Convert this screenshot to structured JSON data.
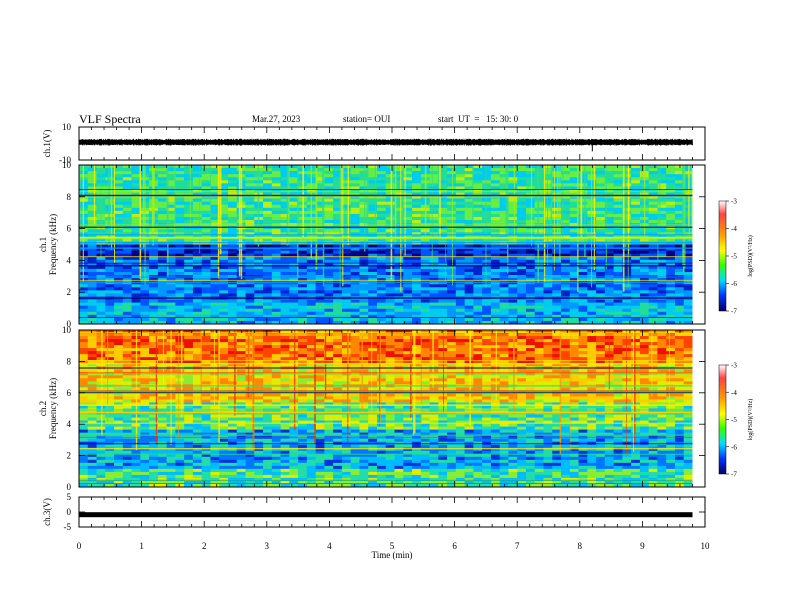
{
  "header": {
    "title": "VLF Spectra",
    "date": "Mar.27, 2023",
    "station": "station= OUI",
    "start": "start  UT  =   15: 30: 0"
  },
  "chart_data": [
    {
      "type": "line",
      "panel": "ch1-waveform",
      "ylabel": "ch.1(V)",
      "ylim": [
        -10,
        10
      ],
      "xlim": [
        0,
        10
      ],
      "yticks": [
        "10",
        "-10"
      ],
      "trace_level": 0.7,
      "trace_end_min": 9.8
    },
    {
      "type": "heatmap",
      "panel": "ch1-spectrogram",
      "ylabel": [
        "ch.1",
        "Frequency  (kHz)"
      ],
      "ylim": [
        0,
        10
      ],
      "yticks": [
        "0",
        "2",
        "4",
        "6",
        "8",
        "10"
      ],
      "xlim": [
        0,
        10
      ],
      "data_end_min": 9.8,
      "colorbar": {
        "label": "log(PSD)(V²/Hz)",
        "ticks": [
          "-3",
          "-4",
          "-5",
          "-6",
          "-7"
        ],
        "range": [
          -7,
          -3
        ]
      }
    },
    {
      "type": "heatmap",
      "panel": "ch2-spectrogram",
      "ylabel": [
        "ch.2",
        "Frequency  (kHz)"
      ],
      "ylim": [
        0,
        10
      ],
      "yticks": [
        "0",
        "2",
        "4",
        "6",
        "8",
        "10"
      ],
      "xlim": [
        0,
        10
      ],
      "data_end_min": 9.8,
      "colorbar": {
        "label": "log(PSD)(V²/Hz)",
        "ticks": [
          "-3",
          "-4",
          "-5",
          "-6",
          "-7"
        ],
        "range": [
          -7,
          -3
        ]
      }
    },
    {
      "type": "line",
      "panel": "ch3-waveform",
      "ylabel": "ch.3(V)",
      "ylim": [
        -5,
        5
      ],
      "xlim": [
        0,
        10
      ],
      "yticks": [
        "5",
        "0",
        "-5"
      ],
      "trace_level": -0.9,
      "trace_end_min": 9.8
    }
  ],
  "xaxis": {
    "label": "Time  (min)",
    "ticks": [
      "0",
      "1",
      "2",
      "3",
      "4",
      "5",
      "6",
      "7",
      "8",
      "9",
      "10"
    ]
  },
  "colors": {
    "ch1_palette": [
      "#00008b",
      "#0022cc",
      "#0066ff",
      "#00aaff",
      "#00ddcc",
      "#22dd88",
      "#55ee33",
      "#aaee22",
      "#ffee00",
      "#ff8800",
      "#ee2200"
    ],
    "colorbar": [
      "#ff4444",
      "#ff9900",
      "#ffff00",
      "#33ff00",
      "#00ddff",
      "#0033ff",
      "#000066"
    ]
  }
}
